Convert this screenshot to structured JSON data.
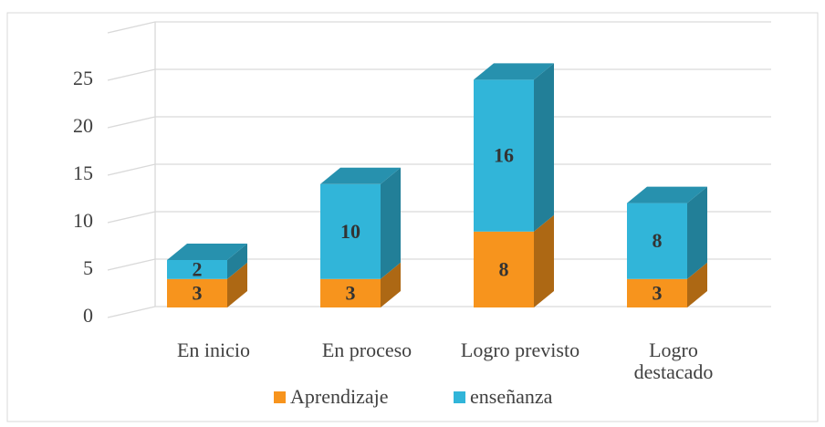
{
  "chart_data": {
    "type": "bar3d_stacked",
    "categories": [
      "En inicio",
      "En proceso",
      "Logro previsto",
      "Logro destacado"
    ],
    "series": [
      {
        "name": "Aprendizaje",
        "color": "#f7941d",
        "values": [
          3,
          3,
          8,
          3
        ]
      },
      {
        "name": "enseñanza",
        "color": "#31b5d9",
        "values": [
          2,
          10,
          16,
          8
        ]
      }
    ],
    "ylim": [
      0,
      30
    ],
    "yticks": [
      0,
      5,
      10,
      15,
      20,
      25
    ],
    "grid": true,
    "legend": "bottom"
  }
}
